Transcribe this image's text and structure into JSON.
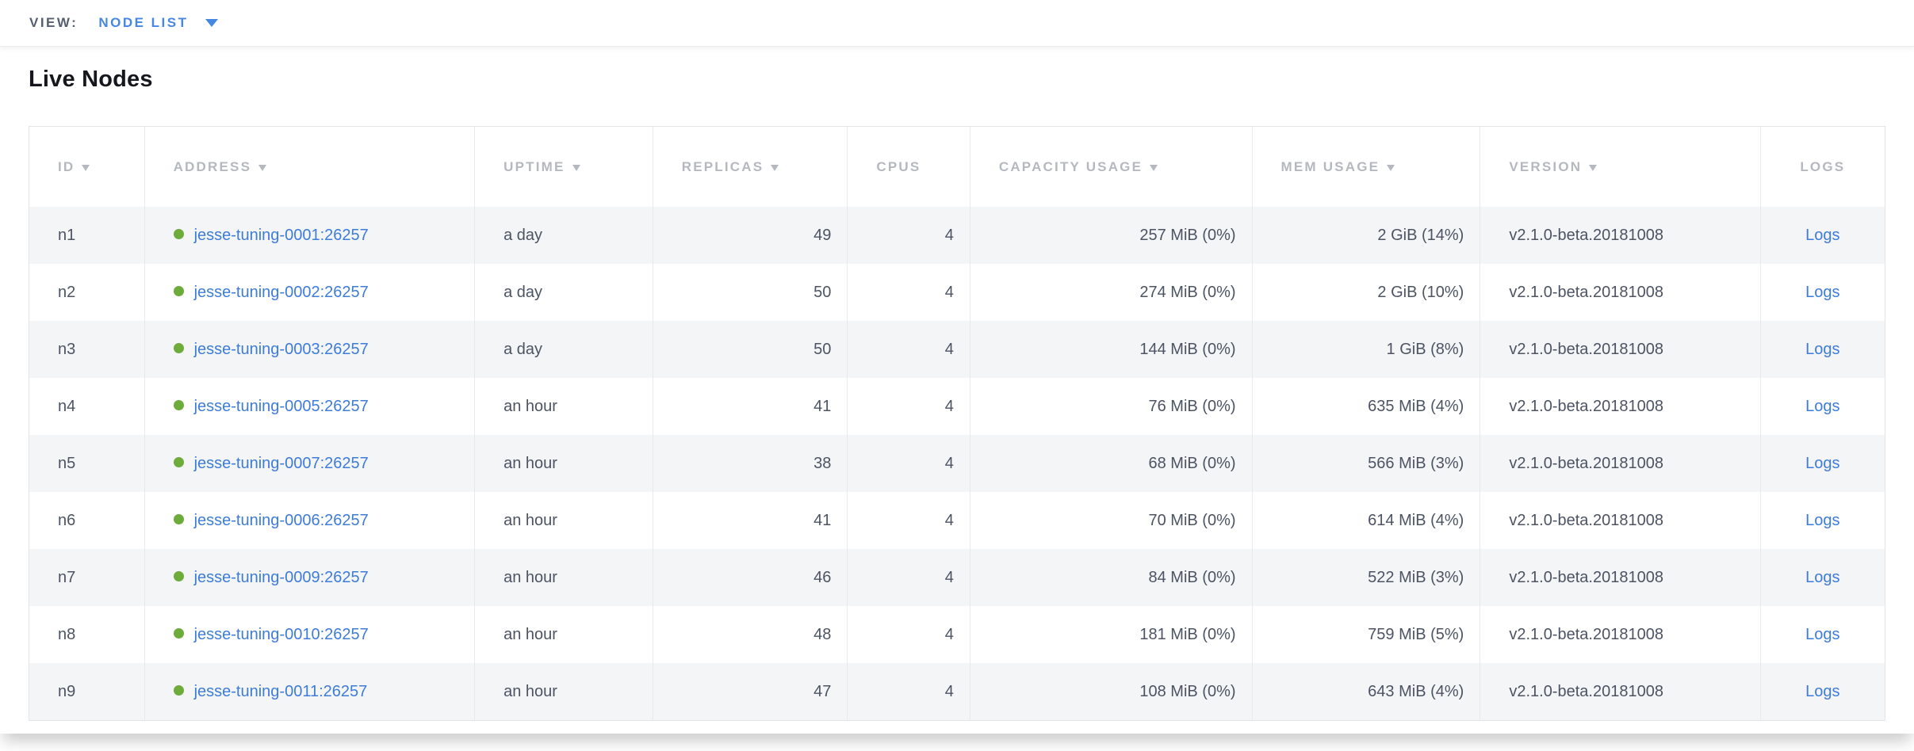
{
  "view_bar": {
    "label": "VIEW:",
    "selected": "NODE LIST"
  },
  "page": {
    "title": "Live Nodes"
  },
  "table": {
    "columns": [
      {
        "label": "ID",
        "sortable": true,
        "align": "left"
      },
      {
        "label": "ADDRESS",
        "sortable": true,
        "align": "left"
      },
      {
        "label": "UPTIME",
        "sortable": true,
        "align": "left"
      },
      {
        "label": "REPLICAS",
        "sortable": true,
        "align": "right"
      },
      {
        "label": "CPUS",
        "sortable": false,
        "align": "right"
      },
      {
        "label": "CAPACITY USAGE",
        "sortable": true,
        "align": "right"
      },
      {
        "label": "MEM USAGE",
        "sortable": true,
        "align": "right"
      },
      {
        "label": "VERSION",
        "sortable": true,
        "align": "left"
      },
      {
        "label": "LOGS",
        "sortable": false,
        "align": "center"
      }
    ],
    "rows": [
      {
        "id": "n1",
        "status": "live",
        "address": "jesse-tuning-0001:26257",
        "uptime": "a day",
        "replicas": "49",
        "cpus": "4",
        "capacity_usage": "257 MiB (0%)",
        "mem_usage": "2 GiB (14%)",
        "version": "v2.1.0-beta.20181008",
        "logs_label": "Logs"
      },
      {
        "id": "n2",
        "status": "live",
        "address": "jesse-tuning-0002:26257",
        "uptime": "a day",
        "replicas": "50",
        "cpus": "4",
        "capacity_usage": "274 MiB (0%)",
        "mem_usage": "2 GiB (10%)",
        "version": "v2.1.0-beta.20181008",
        "logs_label": "Logs"
      },
      {
        "id": "n3",
        "status": "live",
        "address": "jesse-tuning-0003:26257",
        "uptime": "a day",
        "replicas": "50",
        "cpus": "4",
        "capacity_usage": "144 MiB (0%)",
        "mem_usage": "1 GiB (8%)",
        "version": "v2.1.0-beta.20181008",
        "logs_label": "Logs"
      },
      {
        "id": "n4",
        "status": "live",
        "address": "jesse-tuning-0005:26257",
        "uptime": "an hour",
        "replicas": "41",
        "cpus": "4",
        "capacity_usage": "76 MiB (0%)",
        "mem_usage": "635 MiB (4%)",
        "version": "v2.1.0-beta.20181008",
        "logs_label": "Logs"
      },
      {
        "id": "n5",
        "status": "live",
        "address": "jesse-tuning-0007:26257",
        "uptime": "an hour",
        "replicas": "38",
        "cpus": "4",
        "capacity_usage": "68 MiB (0%)",
        "mem_usage": "566 MiB (3%)",
        "version": "v2.1.0-beta.20181008",
        "logs_label": "Logs"
      },
      {
        "id": "n6",
        "status": "live",
        "address": "jesse-tuning-0006:26257",
        "uptime": "an hour",
        "replicas": "41",
        "cpus": "4",
        "capacity_usage": "70 MiB (0%)",
        "mem_usage": "614 MiB (4%)",
        "version": "v2.1.0-beta.20181008",
        "logs_label": "Logs"
      },
      {
        "id": "n7",
        "status": "live",
        "address": "jesse-tuning-0009:26257",
        "uptime": "an hour",
        "replicas": "46",
        "cpus": "4",
        "capacity_usage": "84 MiB (0%)",
        "mem_usage": "522 MiB (3%)",
        "version": "v2.1.0-beta.20181008",
        "logs_label": "Logs"
      },
      {
        "id": "n8",
        "status": "live",
        "address": "jesse-tuning-0010:26257",
        "uptime": "an hour",
        "replicas": "48",
        "cpus": "4",
        "capacity_usage": "181 MiB (0%)",
        "mem_usage": "759 MiB (5%)",
        "version": "v2.1.0-beta.20181008",
        "logs_label": "Logs"
      },
      {
        "id": "n9",
        "status": "live",
        "address": "jesse-tuning-0011:26257",
        "uptime": "an hour",
        "replicas": "47",
        "cpus": "4",
        "capacity_usage": "108 MiB (0%)",
        "mem_usage": "643 MiB (4%)",
        "version": "v2.1.0-beta.20181008",
        "logs_label": "Logs"
      }
    ]
  },
  "colors": {
    "accent_blue": "#4687e4",
    "link_blue": "#3e7cd9",
    "node_green": "#6dab3b"
  }
}
